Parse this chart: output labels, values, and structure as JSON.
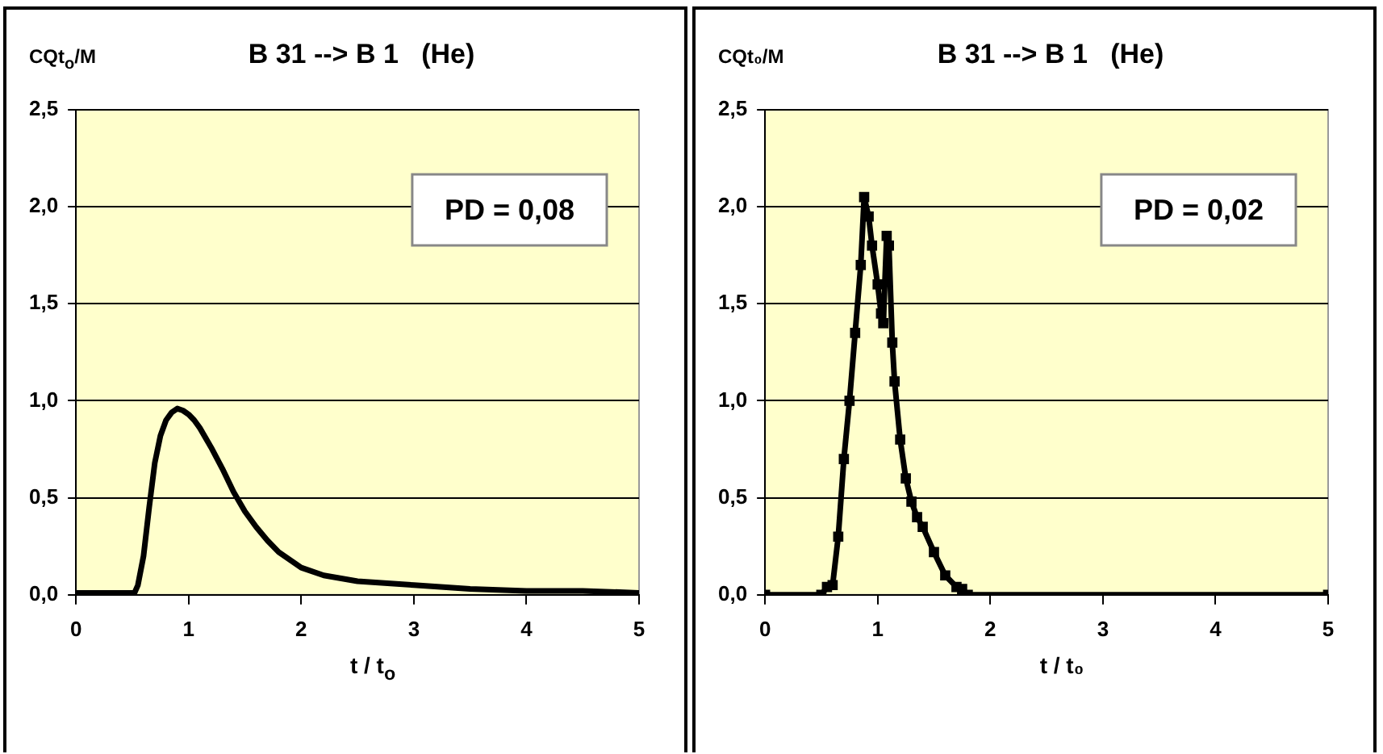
{
  "chart_data": [
    {
      "type": "line",
      "title": "B 31 --> B 1   (He)",
      "ylabel": "CQt$_{o}$/M",
      "xlabel": "t / t$_{o}$",
      "annotations": [
        "PD = 0,08"
      ],
      "grid": "y",
      "marker": "none",
      "legend": false,
      "xlim": [
        0,
        5
      ],
      "xticks": [
        0,
        1,
        2,
        3,
        4,
        5
      ],
      "ylim": [
        0,
        2.5
      ],
      "yticks": [
        {
          "value": 0,
          "label": "0,0"
        },
        {
          "value": 0.5,
          "label": "0,5"
        },
        {
          "value": 1,
          "label": "1,0"
        },
        {
          "value": 1.5,
          "label": "1,5"
        },
        {
          "value": 2,
          "label": "2,0"
        },
        {
          "value": 2.5,
          "label": "2,5"
        }
      ],
      "x": [
        0,
        0.5,
        0.52,
        0.55,
        0.6,
        0.65,
        0.7,
        0.75,
        0.8,
        0.85,
        0.9,
        0.95,
        1.0,
        1.05,
        1.1,
        1.2,
        1.3,
        1.4,
        1.5,
        1.6,
        1.7,
        1.8,
        2.0,
        2.2,
        2.5,
        3,
        3.5,
        4,
        4.5,
        5
      ],
      "series": [
        {
          "color": "#000000",
          "values": [
            0.01,
            0.01,
            0.01,
            0.05,
            0.2,
            0.45,
            0.68,
            0.82,
            0.9,
            0.94,
            0.96,
            0.95,
            0.93,
            0.9,
            0.86,
            0.76,
            0.65,
            0.53,
            0.43,
            0.35,
            0.28,
            0.22,
            0.14,
            0.1,
            0.07,
            0.05,
            0.03,
            0.02,
            0.02,
            0.01
          ]
        }
      ]
    },
    {
      "type": "line",
      "title": "B 31 --> B 1   (He)",
      "ylabel": "CQt₀/M",
      "xlabel": "t / t₀",
      "annotations": [
        "PD = 0,02"
      ],
      "grid": "y",
      "marker": "square",
      "legend": false,
      "xlim": [
        0,
        5
      ],
      "xticks": [
        0,
        1,
        2,
        3,
        4,
        5
      ],
      "ylim": [
        0,
        2.5
      ],
      "yticks": [
        {
          "value": 0,
          "label": "0,0"
        },
        {
          "value": 0.5,
          "label": "0,5"
        },
        {
          "value": 1,
          "label": "1,0"
        },
        {
          "value": 1.5,
          "label": "1,5"
        },
        {
          "value": 2,
          "label": "2,0"
        },
        {
          "value": 2.5,
          "label": "2,5"
        }
      ],
      "x": [
        0,
        0.5,
        0.55,
        0.6,
        0.65,
        0.7,
        0.75,
        0.8,
        0.85,
        0.88,
        0.92,
        0.95,
        1.0,
        1.03,
        1.05,
        1.08,
        1.1,
        1.13,
        1.15,
        1.2,
        1.25,
        1.3,
        1.35,
        1.4,
        1.5,
        1.6,
        1.7,
        1.75,
        1.8,
        5
      ],
      "series": [
        {
          "color": "#000000",
          "values": [
            0,
            0,
            0.04,
            0.05,
            0.3,
            0.7,
            1.0,
            1.35,
            1.7,
            2.05,
            1.95,
            1.8,
            1.6,
            1.45,
            1.4,
            1.85,
            1.8,
            1.3,
            1.1,
            0.8,
            0.6,
            0.48,
            0.4,
            0.35,
            0.22,
            0.1,
            0.04,
            0.03,
            0,
            0
          ]
        }
      ]
    }
  ]
}
